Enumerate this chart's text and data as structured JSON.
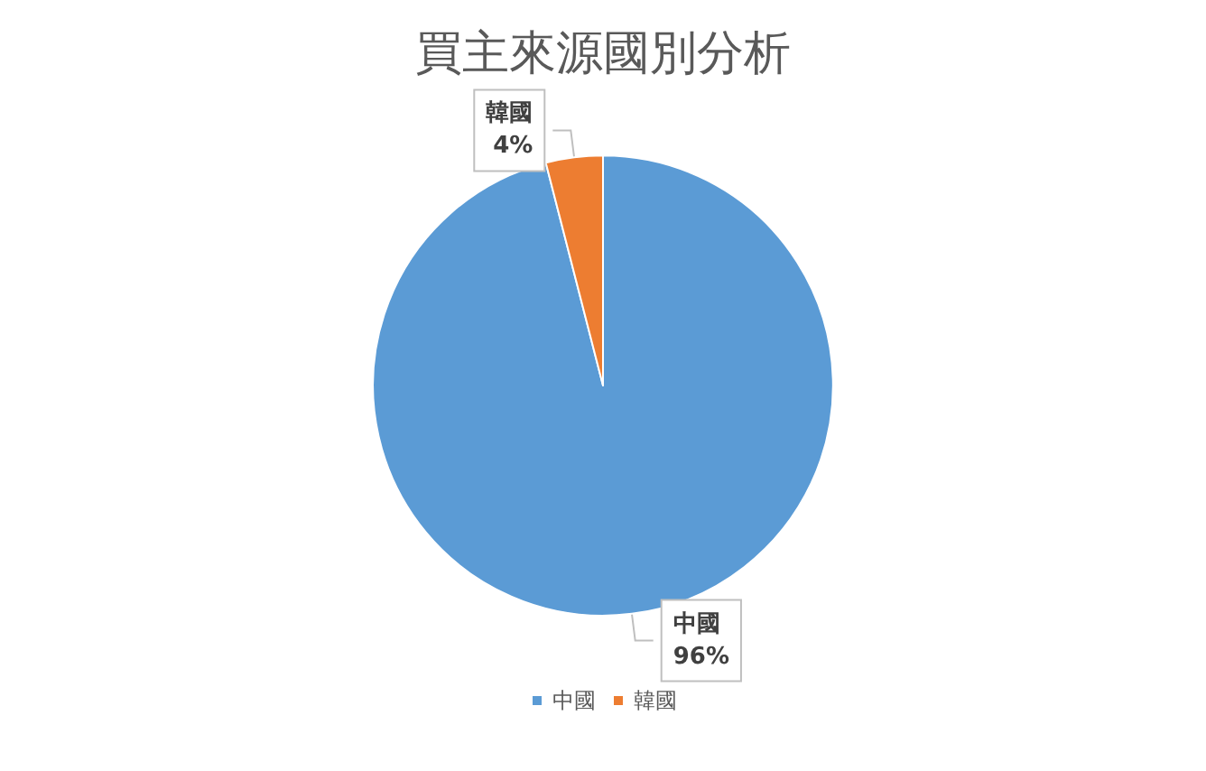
{
  "chart_data": {
    "type": "pie",
    "title": "買主來源國別分析",
    "categories": [
      "中國",
      "韓國"
    ],
    "values": [
      96,
      4
    ],
    "value_labels": [
      "96%",
      "4%"
    ],
    "colors": [
      "#5b9bd5",
      "#ed7d31"
    ],
    "legend": "bottom"
  }
}
